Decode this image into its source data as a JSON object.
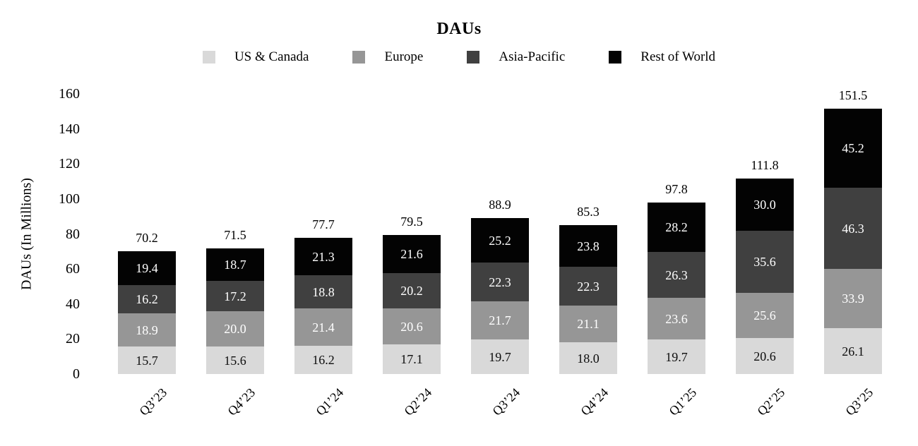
{
  "chart_data": {
    "type": "bar",
    "stacked": true,
    "title": "DAUs",
    "ylabel": "DAUs (In Millions)",
    "ylim": [
      0,
      160
    ],
    "yticks": [
      0,
      20,
      40,
      60,
      80,
      100,
      120,
      140,
      160
    ],
    "grid": false,
    "legend_position": "top",
    "categories": [
      "Q3’23",
      "Q4’23",
      "Q1’24",
      "Q2’24",
      "Q3’24",
      "Q4’24",
      "Q1’25",
      "Q2’25",
      "Q3’25"
    ],
    "series": [
      {
        "name": "US & Canada",
        "color": "#d9d9d9",
        "label_color": "#0d0d0d",
        "values": [
          15.7,
          15.6,
          16.2,
          17.1,
          19.7,
          18.0,
          19.7,
          20.6,
          26.1
        ]
      },
      {
        "name": "Europe",
        "color": "#969696",
        "label_color": "#ffffff",
        "values": [
          18.9,
          20.0,
          21.4,
          20.6,
          21.7,
          21.1,
          23.6,
          25.6,
          33.9
        ]
      },
      {
        "name": "Asia-Pacific",
        "color": "#404040",
        "label_color": "#ffffff",
        "values": [
          16.2,
          17.2,
          18.8,
          20.2,
          22.3,
          22.3,
          26.3,
          35.6,
          46.3
        ]
      },
      {
        "name": "Rest of World",
        "color": "#030303",
        "label_color": "#ffffff",
        "values": [
          19.4,
          18.7,
          21.3,
          21.6,
          25.2,
          23.8,
          28.2,
          30.0,
          45.2
        ]
      }
    ],
    "totals": [
      "70.2",
      "71.5",
      "77.7",
      "79.5",
      "88.9",
      "85.3",
      "97.8",
      "111.8",
      "151.5"
    ]
  }
}
